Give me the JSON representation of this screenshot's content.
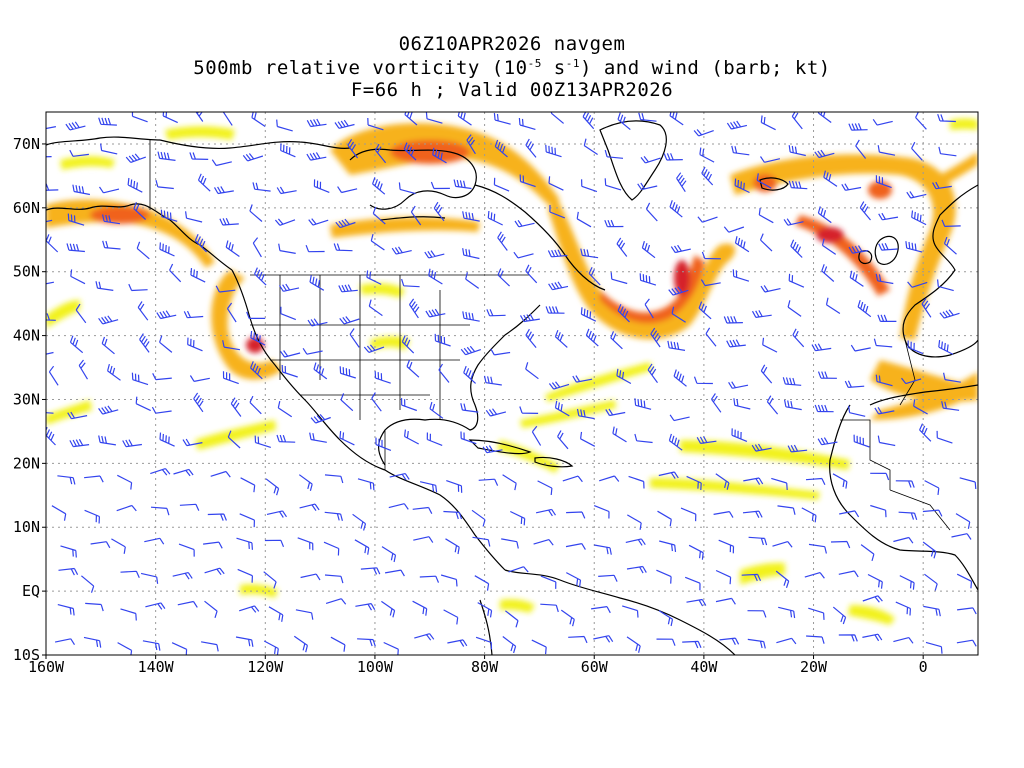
{
  "title": {
    "line1": "06Z10APR2026 navgem",
    "line2_prefix": "500mb relative vorticity (10",
    "line2_exp1": "-5",
    "line2_mid": " s",
    "line2_exp2": "-1",
    "line2_suffix": ") and wind (barb; kt)",
    "line3": "F=66 h ; Valid 00Z13APR2026"
  },
  "map": {
    "projection": "lat-lon",
    "lon_range": [
      -160,
      10
    ],
    "lat_range": [
      -10,
      75
    ],
    "lon_ticks": [
      "160W",
      "140W",
      "120W",
      "100W",
      "80W",
      "60W",
      "40W",
      "20W",
      "0"
    ],
    "lat_ticks": [
      "10S",
      "EQ",
      "10N",
      "20N",
      "30N",
      "40N",
      "50N",
      "60N",
      "70N"
    ],
    "grid": true,
    "colors": {
      "vort_low": "#f2f21a",
      "vort_mid": "#f7b21e",
      "vort_high": "#f0621e",
      "vort_max": "#d6202a",
      "barb": "#3344ee",
      "coast": "#000000",
      "grid": "#9a9a9a"
    }
  }
}
